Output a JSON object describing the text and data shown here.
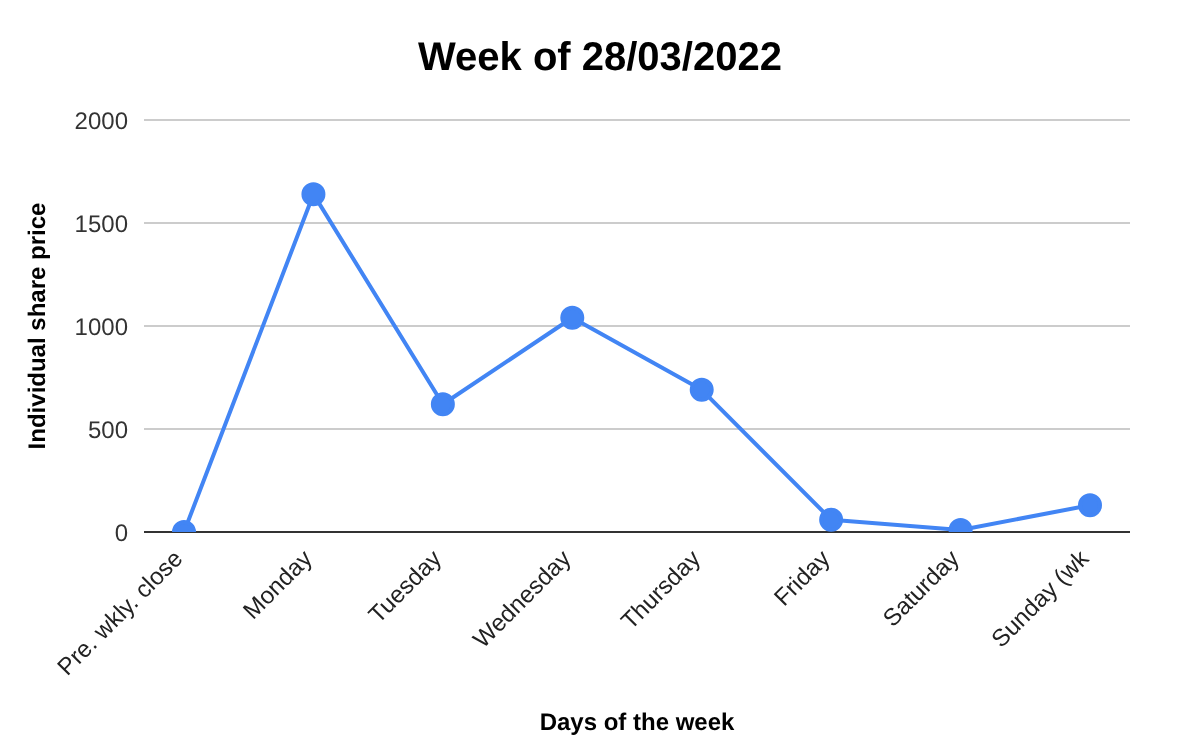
{
  "chart_data": {
    "type": "line",
    "title": "Week of 28/03/2022",
    "xlabel": "Days of the week",
    "ylabel": "Individual share price",
    "categories": [
      "Pre. wkly. close",
      "Monday",
      "Tuesday",
      "Wednesday",
      "Thursday",
      "Friday",
      "Saturday",
      "Sunday (wk"
    ],
    "series": [
      {
        "color": "#4285f4",
        "values": [
          0,
          1640,
          620,
          1040,
          690,
          60,
          10,
          130
        ]
      }
    ],
    "ylim": [
      0,
      2000
    ],
    "yticks": [
      0,
      500,
      1000,
      1500,
      2000
    ],
    "grid": "y",
    "marker": "circle",
    "line_style": "solid"
  }
}
